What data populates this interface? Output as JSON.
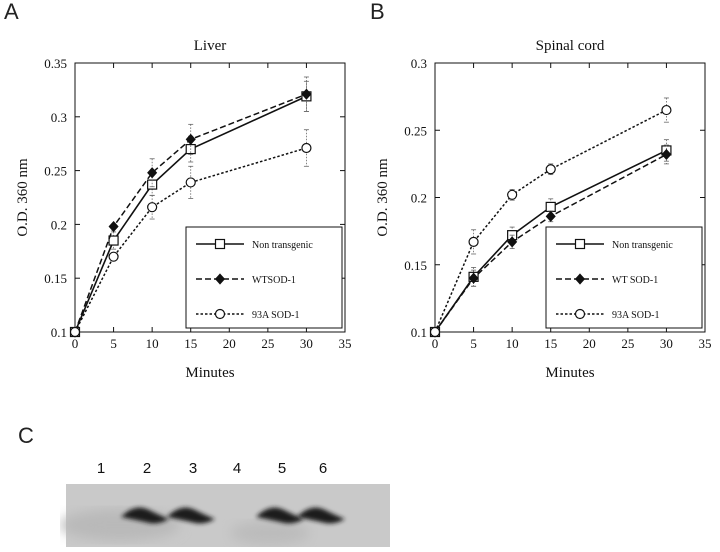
{
  "panels": {
    "a": "A",
    "b": "B",
    "c": "C"
  },
  "chart_data": [
    {
      "type": "line",
      "panel": "A",
      "title": "Liver",
      "xlabel": "Minutes",
      "ylabel": "O.D. 360 nm",
      "xlim": [
        0,
        35
      ],
      "ylim": [
        0.1,
        0.35
      ],
      "xticks": [
        "0",
        "5",
        "10",
        "15",
        "20",
        "25",
        "30",
        "35"
      ],
      "yticks": [
        "0.1",
        "0.15",
        "0.2",
        "0.25",
        "0.3",
        "0.35"
      ],
      "grid": false,
      "legend_position": "bottom-right",
      "x": [
        0,
        5,
        10,
        15,
        30
      ],
      "series": [
        {
          "name": "Non transgenic",
          "marker": "open-square",
          "line": "solid",
          "values": [
            0.1,
            0.185,
            0.237,
            0.27,
            0.319
          ],
          "errors": [
            0,
            0.008,
            0.01,
            0.012,
            0.014
          ]
        },
        {
          "name": "WTSOD-1",
          "marker": "filled-diamond",
          "line": "dashed",
          "values": [
            0.1,
            0.198,
            0.248,
            0.279,
            0.321
          ],
          "errors": [
            0,
            0,
            0.013,
            0.014,
            0.016
          ]
        },
        {
          "name": "93A SOD-1",
          "marker": "open-circle",
          "line": "dotted",
          "values": [
            0.1,
            0.17,
            0.216,
            0.239,
            0.271
          ],
          "errors": [
            0,
            0,
            0.011,
            0.015,
            0.017
          ]
        }
      ]
    },
    {
      "type": "line",
      "panel": "B",
      "title": "Spinal cord",
      "xlabel": "Minutes",
      "ylabel": "O.D. 360 nm",
      "xlim": [
        0,
        35
      ],
      "ylim": [
        0.1,
        0.3
      ],
      "xticks": [
        "0",
        "5",
        "10",
        "15",
        "20",
        "25",
        "30",
        "35"
      ],
      "yticks": [
        "0.1",
        "0.15",
        "0.2",
        "0.25",
        "0.3"
      ],
      "grid": false,
      "legend_position": "bottom-right",
      "x": [
        0,
        5,
        10,
        15,
        30
      ],
      "series": [
        {
          "name": "Non transgenic",
          "marker": "open-square",
          "line": "solid",
          "values": [
            0.1,
            0.141,
            0.172,
            0.193,
            0.235
          ],
          "errors": [
            0,
            0.007,
            0.006,
            0.006,
            0.008
          ]
        },
        {
          "name": "WT SOD-1",
          "marker": "filled-diamond",
          "line": "dashed",
          "values": [
            0.1,
            0.14,
            0.167,
            0.186,
            0.232
          ],
          "errors": [
            0,
            0.006,
            0.005,
            0.004,
            0.007
          ]
        },
        {
          "name": "93A SOD-1",
          "marker": "open-circle",
          "line": "dotted",
          "values": [
            0.1,
            0.167,
            0.202,
            0.221,
            0.265
          ],
          "errors": [
            0,
            0.009,
            0.004,
            0.004,
            0.009
          ]
        }
      ]
    }
  ],
  "blot": {
    "lanes": [
      "1",
      "2",
      "3",
      "4",
      "5",
      "6"
    ],
    "band_present": [
      false,
      true,
      true,
      false,
      true,
      true
    ]
  }
}
